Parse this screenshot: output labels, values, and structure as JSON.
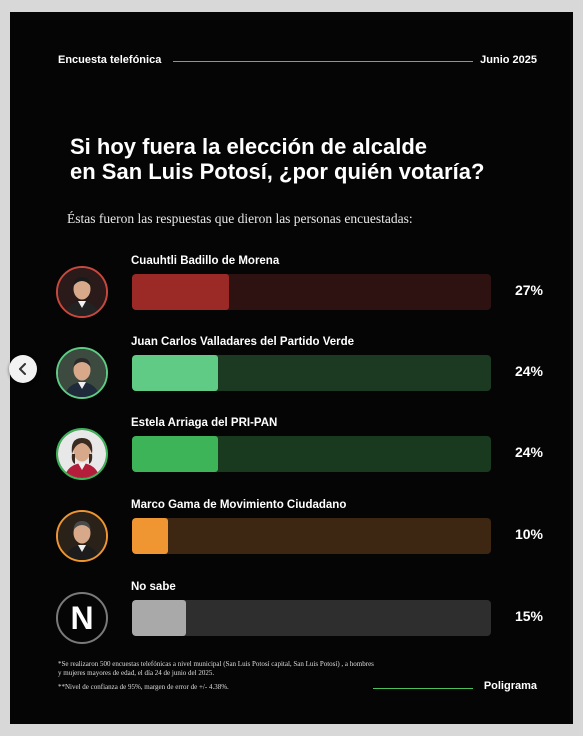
{
  "header": {
    "left_label": "Encuesta telefónica",
    "right_label": "Junio 2025"
  },
  "title_line1": "Si hoy fuera la elección de alcalde",
  "title_line2": "en San Luis Potosí, ¿por quién votaría?",
  "subtitle": "Éstas fueron las respuestas que dieron las personas encuestadas:",
  "chart_data": {
    "type": "bar",
    "orientation": "horizontal",
    "title": "Si hoy fuera la elección de alcalde en San Luis Potosí, ¿por quién votaría?",
    "categories": [
      "Cuauhtli Badillo de Morena",
      "Juan Carlos Valladares del Partido Verde",
      "Estela Arriaga del PRI-PAN",
      "Marco Gama de Movimiento Ciudadano",
      "No sabe"
    ],
    "values": [
      27,
      24,
      24,
      10,
      15
    ],
    "value_labels": [
      "27%",
      "24%",
      "24%",
      "10%",
      "15%"
    ],
    "unit": "%",
    "xlim": [
      0,
      100
    ],
    "grid": false,
    "colors": [
      "#9b2a26",
      "#5fcb84",
      "#3db458",
      "#ef9531",
      "#a9a9a9"
    ],
    "track_colors": [
      "#2e1211",
      "#1c3a22",
      "#1a3a1f",
      "#3d2712",
      "#2e2e2e"
    ],
    "avatar_border_colors": [
      "#c9483e",
      "#5fcb84",
      "#3db458",
      "#ef9531",
      "#7a7a7a"
    ],
    "avatar_icons": [
      "man-portrait-icon",
      "man-portrait-icon",
      "woman-portrait-icon",
      "man-portrait-icon",
      "n-logo-icon"
    ]
  },
  "no_sabe_letter": "N",
  "footnotes": {
    "line1": "*Se realizaron 500 encuestas telefónicas a nivel municipal (San Luis Potosí capital, San Luis Potosí) , a hombres y mujeres mayores de edad, el día 24 de junio del 2025.",
    "line2": "**Nivel de confianza de 95%, margen de error de +/- 4.38%."
  },
  "brand": "Poligrama",
  "nav": {
    "prev_icon": "chevron-left-icon"
  }
}
